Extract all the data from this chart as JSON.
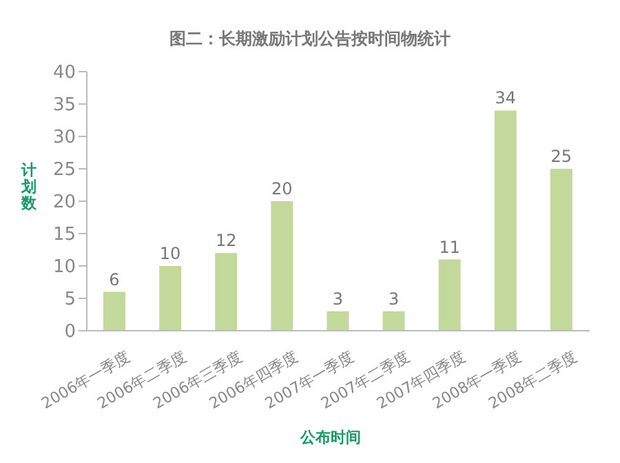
{
  "chart_data": {
    "type": "bar",
    "title": "图二：长期激励计划公告按时间物统计",
    "xlabel": "公布时间",
    "ylabel": "计划数",
    "categories": [
      "2006年一季度",
      "2006年二季度",
      "2006年三季度",
      "2006年四季度",
      "2007年一季度",
      "2007年二季度",
      "2007年四季度",
      "2008年一季度",
      "2008年二季度"
    ],
    "values": [
      6,
      10,
      12,
      20,
      3,
      3,
      11,
      34,
      25
    ],
    "color": "#c3d99b",
    "ylim": [
      0,
      40
    ],
    "yticks": [
      0,
      5,
      10,
      15,
      20,
      25,
      30,
      35,
      40
    ],
    "grid": false,
    "data_labels": true
  }
}
